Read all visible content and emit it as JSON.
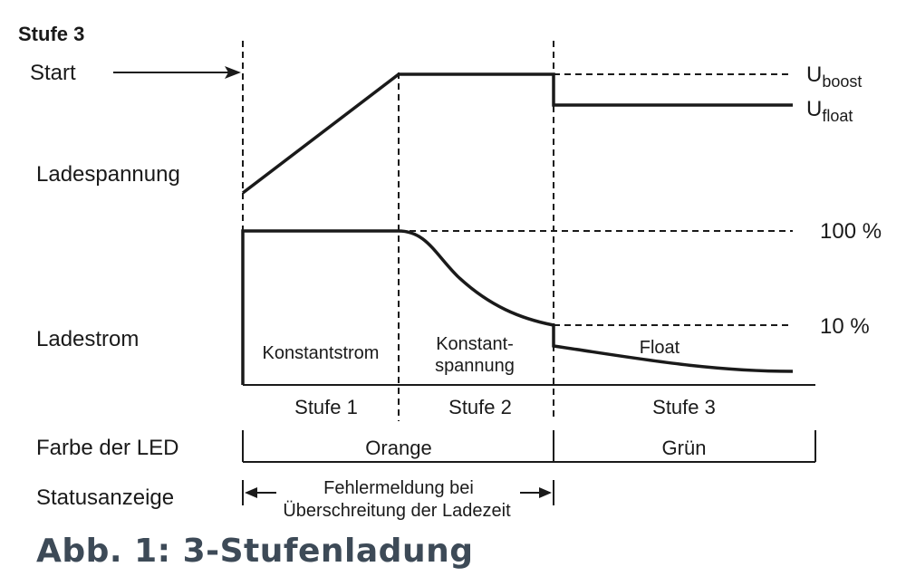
{
  "diagram": {
    "stage_title": "Stufe 3",
    "row_labels": {
      "start": "Start",
      "voltage": "Ladespannung",
      "current": "Ladestrom",
      "led_color": "Farbe der LED",
      "status": "Statusanzeige"
    },
    "voltage_levels": {
      "boost": {
        "main": "U",
        "sub": "boost"
      },
      "float": {
        "main": "U",
        "sub": "float"
      }
    },
    "current_levels": {
      "full": "100 %",
      "low": "10 %"
    },
    "phase_labels": {
      "constant_current": "Konstantstrom",
      "constant_voltage_line1": "Konstant-",
      "constant_voltage_line2": "spannung",
      "float": "Float"
    },
    "stages": [
      "Stufe 1",
      "Stufe 2",
      "Stufe 3"
    ],
    "led_colors": [
      "Orange",
      "Grün"
    ],
    "status_text_line1": "Fehlermeldung bei",
    "status_text_line2": "Überschreitung der Ladezeit",
    "line_color": "#1a1a1a"
  },
  "caption": "Abb. 1: 3-Stufenladung"
}
